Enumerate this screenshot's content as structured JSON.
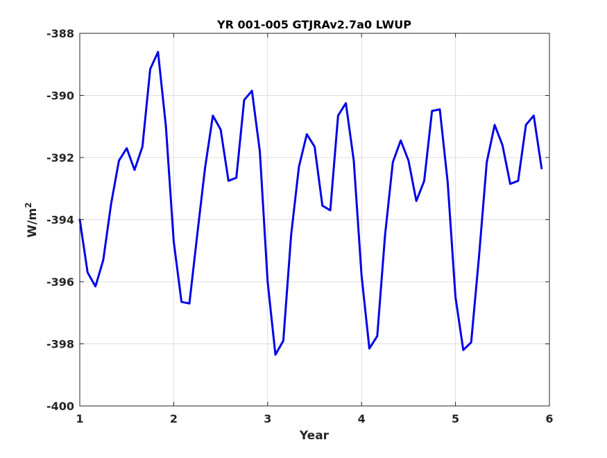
{
  "chart_data": {
    "type": "line",
    "title": "YR 001-005 GTJRAv2.7a0 LWUP",
    "xlabel": "Year",
    "ylabel": "W/m",
    "ylabel_superscript": "2",
    "xlim": [
      1,
      6
    ],
    "ylim": [
      -400,
      -388
    ],
    "xticks": [
      1,
      2,
      3,
      4,
      5,
      6
    ],
    "yticks": [
      -400,
      -398,
      -396,
      -394,
      -392,
      -390,
      -388
    ],
    "xtick_labels": [
      "1",
      "2",
      "3",
      "4",
      "5",
      "6"
    ],
    "ytick_labels": [
      "-400",
      "-398",
      "-396",
      "-394",
      "-392",
      "-390",
      "-388"
    ],
    "grid": true,
    "line_color": "#0000e6",
    "series": [
      {
        "x": [
          1.0,
          1.083,
          1.167,
          1.25,
          1.333,
          1.417,
          1.5,
          1.583,
          1.667,
          1.75,
          1.833,
          1.917,
          2.0,
          2.083,
          2.167,
          2.25,
          2.333,
          2.417,
          2.5,
          2.583,
          2.667,
          2.75,
          2.833,
          2.917,
          3.0,
          3.083,
          3.167,
          3.25,
          3.333,
          3.417,
          3.5,
          3.583,
          3.667,
          3.75,
          3.833,
          3.917,
          4.0,
          4.083,
          4.167,
          4.25,
          4.333,
          4.417,
          4.5,
          4.583,
          4.667,
          4.75,
          4.833,
          4.917,
          5.0,
          5.083,
          5.167,
          5.25,
          5.333,
          5.417,
          5.5,
          5.583,
          5.667,
          5.75,
          5.833,
          5.917
        ],
        "values": [
          -394.0,
          -395.7,
          -396.15,
          -395.3,
          -393.5,
          -392.1,
          -391.7,
          -392.4,
          -391.65,
          -389.15,
          -388.6,
          -391.0,
          -394.7,
          -396.65,
          -396.7,
          -394.5,
          -392.35,
          -390.65,
          -391.1,
          -392.75,
          -392.65,
          -390.15,
          -389.85,
          -391.8,
          -396.0,
          -398.35,
          -397.9,
          -394.5,
          -392.3,
          -391.25,
          -391.65,
          -393.55,
          -393.7,
          -390.65,
          -390.25,
          -392.1,
          -395.8,
          -398.15,
          -397.75,
          -394.5,
          -392.15,
          -391.45,
          -392.1,
          -393.4,
          -392.75,
          -390.5,
          -390.45,
          -392.8,
          -396.5,
          -398.2,
          -397.95,
          -395.2,
          -392.15,
          -390.95,
          -391.6,
          -392.85,
          -392.75,
          -390.95,
          -390.65,
          -392.35
        ]
      }
    ]
  }
}
